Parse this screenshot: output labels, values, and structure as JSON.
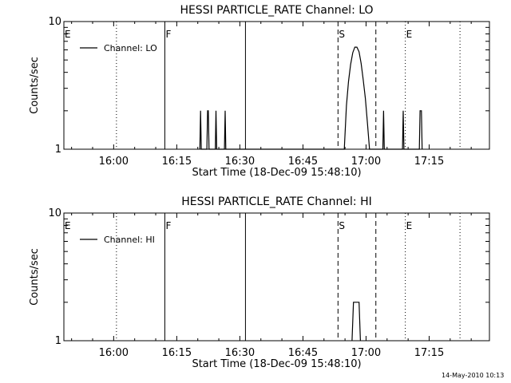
{
  "footer": {
    "stamp": "14-May-2010 10:13"
  },
  "chart_data": [
    {
      "type": "line",
      "title": "HESSI PARTICLE_RATE Channel: LO",
      "xlabel": "Start Time (18-Dec-09 15:48:10)",
      "ylabel": "Counts/sec",
      "yscale": "log",
      "ylim": [
        1,
        10
      ],
      "xlim": [
        "15:48:10",
        "17:29:20"
      ],
      "x_ticks": [
        "16:00",
        "16:15",
        "16:30",
        "16:45",
        "17:00",
        "17:15"
      ],
      "y_ticks": [
        "1",
        "10"
      ],
      "legend": {
        "position": "top-left",
        "entries": [
          "Channel: LO"
        ]
      },
      "markers": [
        {
          "time": "15:48:10",
          "label": "E",
          "style": "dotted"
        },
        {
          "time": "16:00:40",
          "label": "",
          "style": "dotted"
        },
        {
          "time": "16:12:10",
          "label": "F",
          "style": "solid"
        },
        {
          "time": "16:31:20",
          "label": "",
          "style": "solid"
        },
        {
          "time": "16:53:20",
          "label": "S",
          "style": "dashed"
        },
        {
          "time": "17:02:20",
          "label": "",
          "style": "dashed"
        },
        {
          "time": "17:09:20",
          "label": "E",
          "style": "dotted"
        },
        {
          "time": "17:22:20",
          "label": "",
          "style": "dotted"
        }
      ],
      "series": [
        {
          "name": "Channel: LO",
          "points": [
            [
              "16:20:30",
              1
            ],
            [
              "16:20:40",
              2
            ],
            [
              "16:20:50",
              1
            ],
            [
              "16:22:10",
              1
            ],
            [
              "16:22:20",
              2
            ],
            [
              "16:22:30",
              2
            ],
            [
              "16:22:40",
              1
            ],
            [
              "16:24:10",
              1
            ],
            [
              "16:24:20",
              2
            ],
            [
              "16:24:30",
              1
            ],
            [
              "16:26:20",
              1
            ],
            [
              "16:26:30",
              2
            ],
            [
              "16:26:40",
              1
            ],
            [
              "16:54:50",
              1
            ],
            [
              "16:55:20",
              2.2
            ],
            [
              "16:55:50",
              3.4
            ],
            [
              "16:56:20",
              4.6
            ],
            [
              "16:56:50",
              5.7
            ],
            [
              "16:57:20",
              6.3
            ],
            [
              "16:57:50",
              6.3
            ],
            [
              "16:58:20",
              5.8
            ],
            [
              "16:58:50",
              4.7
            ],
            [
              "16:59:20",
              3.5
            ],
            [
              "16:59:50",
              2.5
            ],
            [
              "17:00:20",
              1.6
            ],
            [
              "17:00:50",
              1
            ],
            [
              "17:04:00",
              1
            ],
            [
              "17:04:10",
              2
            ],
            [
              "17:04:20",
              1
            ],
            [
              "17:08:40",
              1
            ],
            [
              "17:08:50",
              2
            ],
            [
              "17:09:00",
              1
            ],
            [
              "17:12:40",
              1
            ],
            [
              "17:12:50",
              2
            ],
            [
              "17:13:10",
              2
            ],
            [
              "17:13:20",
              1
            ]
          ]
        }
      ]
    },
    {
      "type": "line",
      "title": "HESSI PARTICLE_RATE Channel: HI",
      "xlabel": "Start Time (18-Dec-09 15:48:10)",
      "ylabel": "Counts/sec",
      "yscale": "log",
      "ylim": [
        1,
        10
      ],
      "xlim": [
        "15:48:10",
        "17:29:20"
      ],
      "x_ticks": [
        "16:00",
        "16:15",
        "16:30",
        "16:45",
        "17:00",
        "17:15"
      ],
      "y_ticks": [
        "1",
        "10"
      ],
      "legend": {
        "position": "top-left",
        "entries": [
          "Channel: HI"
        ]
      },
      "markers": [
        {
          "time": "15:48:10",
          "label": "E",
          "style": "dotted"
        },
        {
          "time": "16:00:40",
          "label": "",
          "style": "dotted"
        },
        {
          "time": "16:12:10",
          "label": "F",
          "style": "solid"
        },
        {
          "time": "16:31:20",
          "label": "",
          "style": "solid"
        },
        {
          "time": "16:53:20",
          "label": "S",
          "style": "dashed"
        },
        {
          "time": "17:02:20",
          "label": "",
          "style": "dashed"
        },
        {
          "time": "17:09:20",
          "label": "E",
          "style": "dotted"
        },
        {
          "time": "17:22:20",
          "label": "",
          "style": "dotted"
        }
      ],
      "series": [
        {
          "name": "Channel: HI",
          "points": [
            [
              "16:56:40",
              1
            ],
            [
              "16:57:00",
              2
            ],
            [
              "16:58:20",
              2
            ],
            [
              "16:58:40",
              1
            ]
          ]
        }
      ]
    }
  ]
}
